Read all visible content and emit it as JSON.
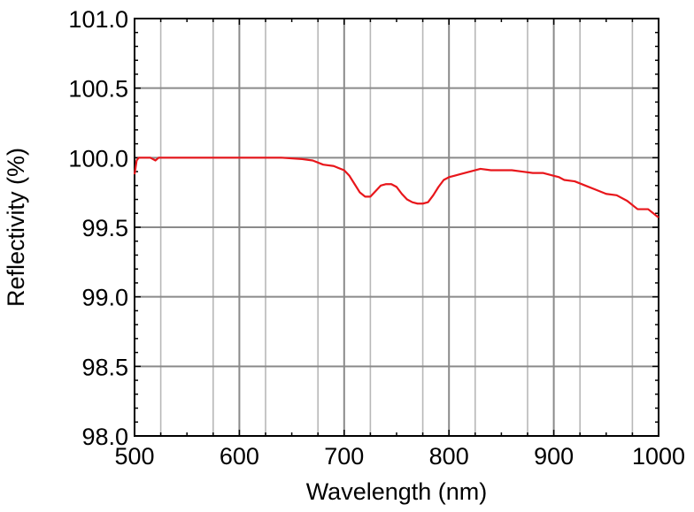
{
  "chart_data": {
    "type": "line",
    "xlabel": "Wavelength (nm)",
    "ylabel": "Reflectivity (%)",
    "xlim": [
      500,
      1000
    ],
    "ylim": [
      98.0,
      101.0
    ],
    "x_ticks": [
      "500",
      "600",
      "700",
      "800",
      "900",
      "1000"
    ],
    "y_ticks": [
      "98.0",
      "98.5",
      "99.0",
      "99.5",
      "100.0",
      "100.5",
      "101.0"
    ],
    "x_tick_values": [
      500,
      600,
      700,
      800,
      900,
      1000
    ],
    "y_tick_values": [
      98.0,
      98.5,
      99.0,
      99.5,
      100.0,
      100.5,
      101.0
    ],
    "grid": true,
    "series": [
      {
        "color": "#e8161b",
        "x": [
          500,
          502,
          504,
          506,
          510,
          515,
          520,
          523,
          526,
          530,
          540,
          550,
          560,
          570,
          580,
          590,
          600,
          620,
          640,
          660,
          670,
          680,
          690,
          700,
          705,
          710,
          715,
          720,
          725,
          730,
          735,
          740,
          745,
          750,
          755,
          760,
          765,
          770,
          775,
          780,
          785,
          790,
          795,
          800,
          805,
          810,
          820,
          830,
          840,
          850,
          860,
          870,
          880,
          890,
          900,
          905,
          910,
          920,
          930,
          940,
          950,
          960,
          970,
          980,
          990,
          995,
          1000
        ],
        "values": [
          99.88,
          99.98,
          100.0,
          100.0,
          100.0,
          100.0,
          99.98,
          100.0,
          100.0,
          100.0,
          100.0,
          100.0,
          100.0,
          100.0,
          100.0,
          100.0,
          100.0,
          100.0,
          100.0,
          99.99,
          99.98,
          99.95,
          99.94,
          99.91,
          99.87,
          99.81,
          99.75,
          99.72,
          99.72,
          99.76,
          99.8,
          99.81,
          99.81,
          99.79,
          99.74,
          99.7,
          99.68,
          99.67,
          99.67,
          99.68,
          99.73,
          99.79,
          99.84,
          99.86,
          99.87,
          99.88,
          99.9,
          99.92,
          99.91,
          99.91,
          99.91,
          99.9,
          99.89,
          99.89,
          99.87,
          99.86,
          99.84,
          99.83,
          99.8,
          99.77,
          99.74,
          99.73,
          99.69,
          99.63,
          99.63,
          99.6,
          99.57
        ]
      }
    ]
  }
}
